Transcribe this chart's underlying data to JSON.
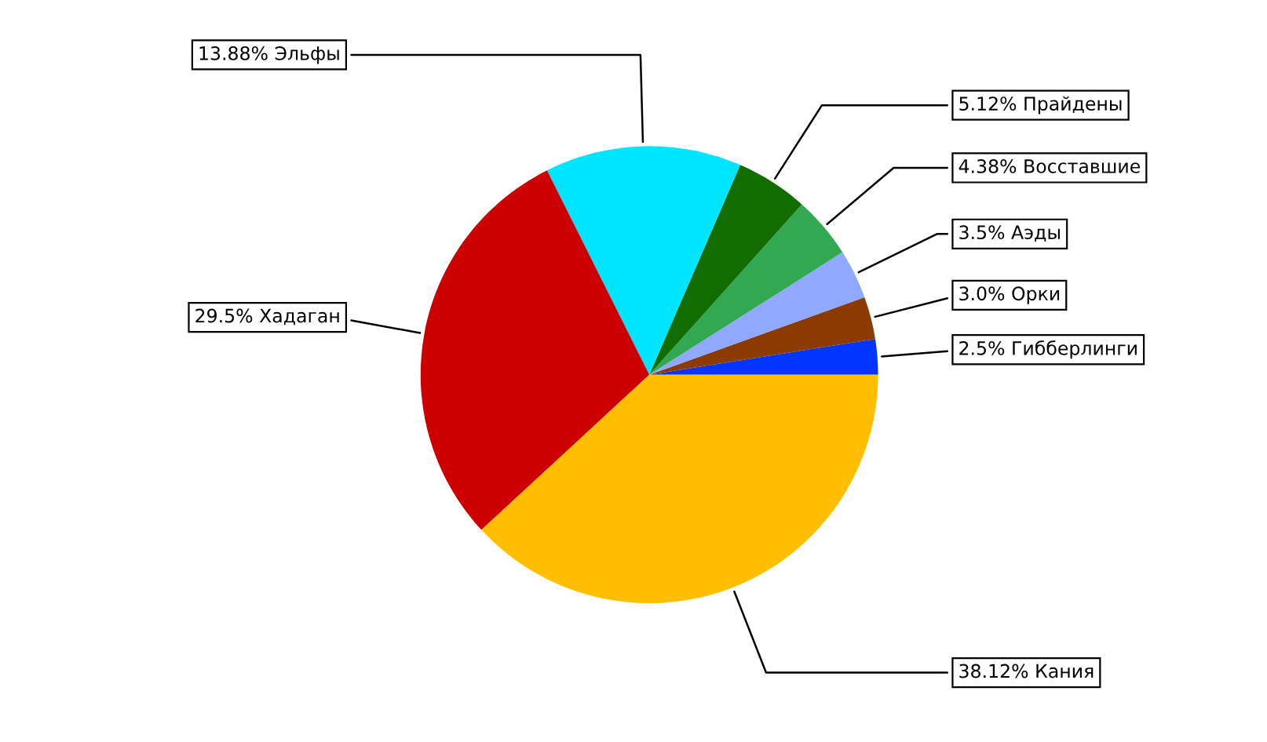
{
  "chart_data": {
    "type": "pie",
    "categories": [
      "Гибберлинги",
      "Орки",
      "Аэды",
      "Восставшие",
      "Прайдены",
      "Эльфы",
      "Хадаган",
      "Кания"
    ],
    "values": [
      2.5,
      3.0,
      3.5,
      4.38,
      5.12,
      13.88,
      29.5,
      38.12
    ],
    "value_labels": [
      "2.5%",
      "3.0%",
      "3.5%",
      "4.38%",
      "5.12%",
      "13.88%",
      "29.5%",
      "38.12%"
    ],
    "colors": [
      "#0035ff",
      "#8b3a00",
      "#90a8ff",
      "#33a853",
      "#126d00",
      "#00e5ff",
      "#cc0000",
      "#ffbf00"
    ]
  }
}
